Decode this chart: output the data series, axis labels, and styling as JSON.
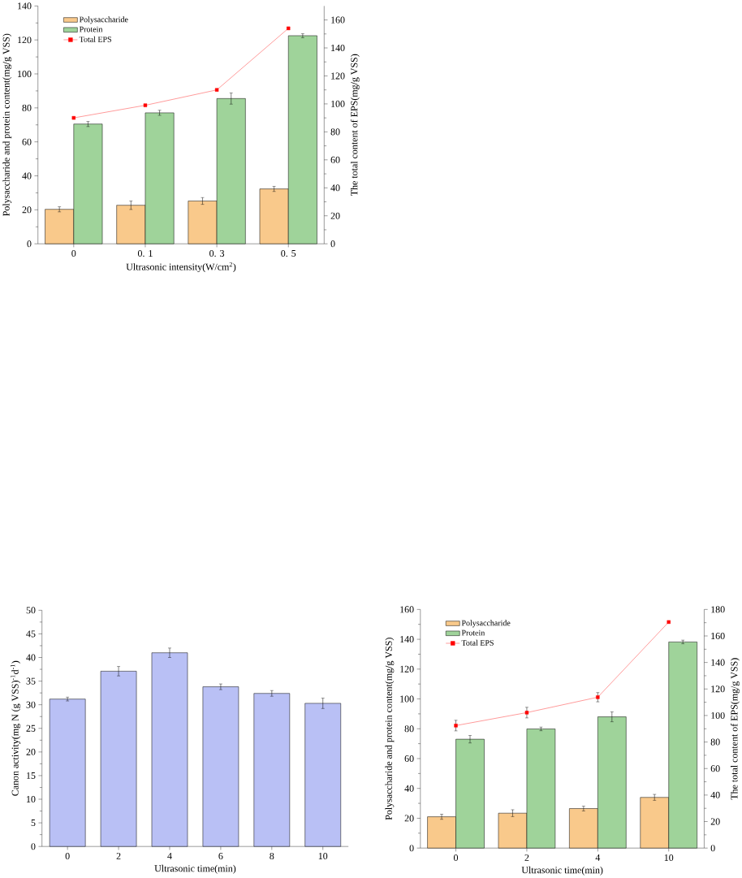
{
  "chart_data": [
    {
      "type": "bar",
      "xlabel": "Ultrasonic intensity(W/cm$^{2}$)",
      "ylabel": "Polysaccharide and protein content(mg/g VSS)",
      "y2label": "The total content of EPS(mg/g VSS)",
      "categories": [
        "0",
        "0. 1",
        "0. 3",
        "0. 5"
      ],
      "ylim": [
        0,
        140
      ],
      "yticks": [
        0,
        20,
        40,
        60,
        80,
        100,
        120,
        140
      ],
      "y2lim": [
        0,
        170
      ],
      "y2ticks": [
        0,
        20,
        40,
        60,
        80,
        100,
        120,
        140,
        160
      ],
      "legend": "top left",
      "series": [
        {
          "name": "Polysaccharide",
          "color": "#f9c98b",
          "values": [
            20.3,
            22.7,
            25.2,
            32.3
          ],
          "errors": [
            1.5,
            2.5,
            2,
            1.5
          ]
        },
        {
          "name": "Protein",
          "color": "#9fd39a",
          "values": [
            70.5,
            77.1,
            85.5,
            122.5
          ],
          "errors": [
            1.5,
            1.5,
            3.3,
            1.2
          ]
        },
        {
          "name": "Total EPS",
          "type": "line",
          "axis": "y2",
          "color": "#ff0000",
          "marker": "square",
          "values": [
            90,
            99,
            110,
            154
          ]
        }
      ]
    },
    {
      "type": "bar",
      "xlabel": "Ultrasonic time(min)",
      "ylabel": "Canon activity(mg N (g VSS)$^{-1}$d$^{-1}$)",
      "categories": [
        "0",
        "2",
        "4",
        "6",
        "8",
        "10"
      ],
      "values": [
        31.2,
        37.1,
        41.0,
        33.8,
        32.4,
        30.3
      ],
      "errors": [
        0.4,
        1,
        1,
        0.6,
        0.6,
        1.1
      ],
      "color": "#b9c0f5",
      "ylim": [
        0,
        50
      ],
      "yticks": [
        0,
        5,
        10,
        15,
        20,
        25,
        30,
        35,
        40,
        45,
        50
      ]
    },
    {
      "type": "bar",
      "xlabel": "Ultrasonic time(min)",
      "ylabel": "Polysaccharide and protein content(mg/g VSS)",
      "y2label": "The total content of EPS(mg/g VSS)",
      "categories": [
        "0",
        "2",
        "4",
        "10"
      ],
      "ylim": [
        0,
        160
      ],
      "yticks": [
        0,
        20,
        40,
        60,
        80,
        100,
        120,
        140,
        160
      ],
      "y2lim": [
        0,
        180
      ],
      "y2ticks": [
        0,
        20,
        40,
        60,
        80,
        100,
        120,
        140,
        160,
        180
      ],
      "legend": "top left",
      "series": [
        {
          "name": "Polysaccharide",
          "color": "#f9c98b",
          "values": [
            21,
            23.4,
            26.5,
            34
          ],
          "errors": [
            1.7,
            2.3,
            1.6,
            2
          ]
        },
        {
          "name": "Protein",
          "color": "#9fd39a",
          "values": [
            73,
            79.9,
            88,
            138.2
          ],
          "errors": [
            2.5,
            1.2,
            3.3,
            1.2
          ]
        },
        {
          "name": "Total EPS",
          "type": "line",
          "axis": "y2",
          "color": "#ff0000",
          "marker": "square",
          "values": [
            92.4,
            102.2,
            113.8,
            170.5
          ],
          "errors": [
            4,
            4,
            3.5,
            null
          ]
        }
      ]
    }
  ]
}
